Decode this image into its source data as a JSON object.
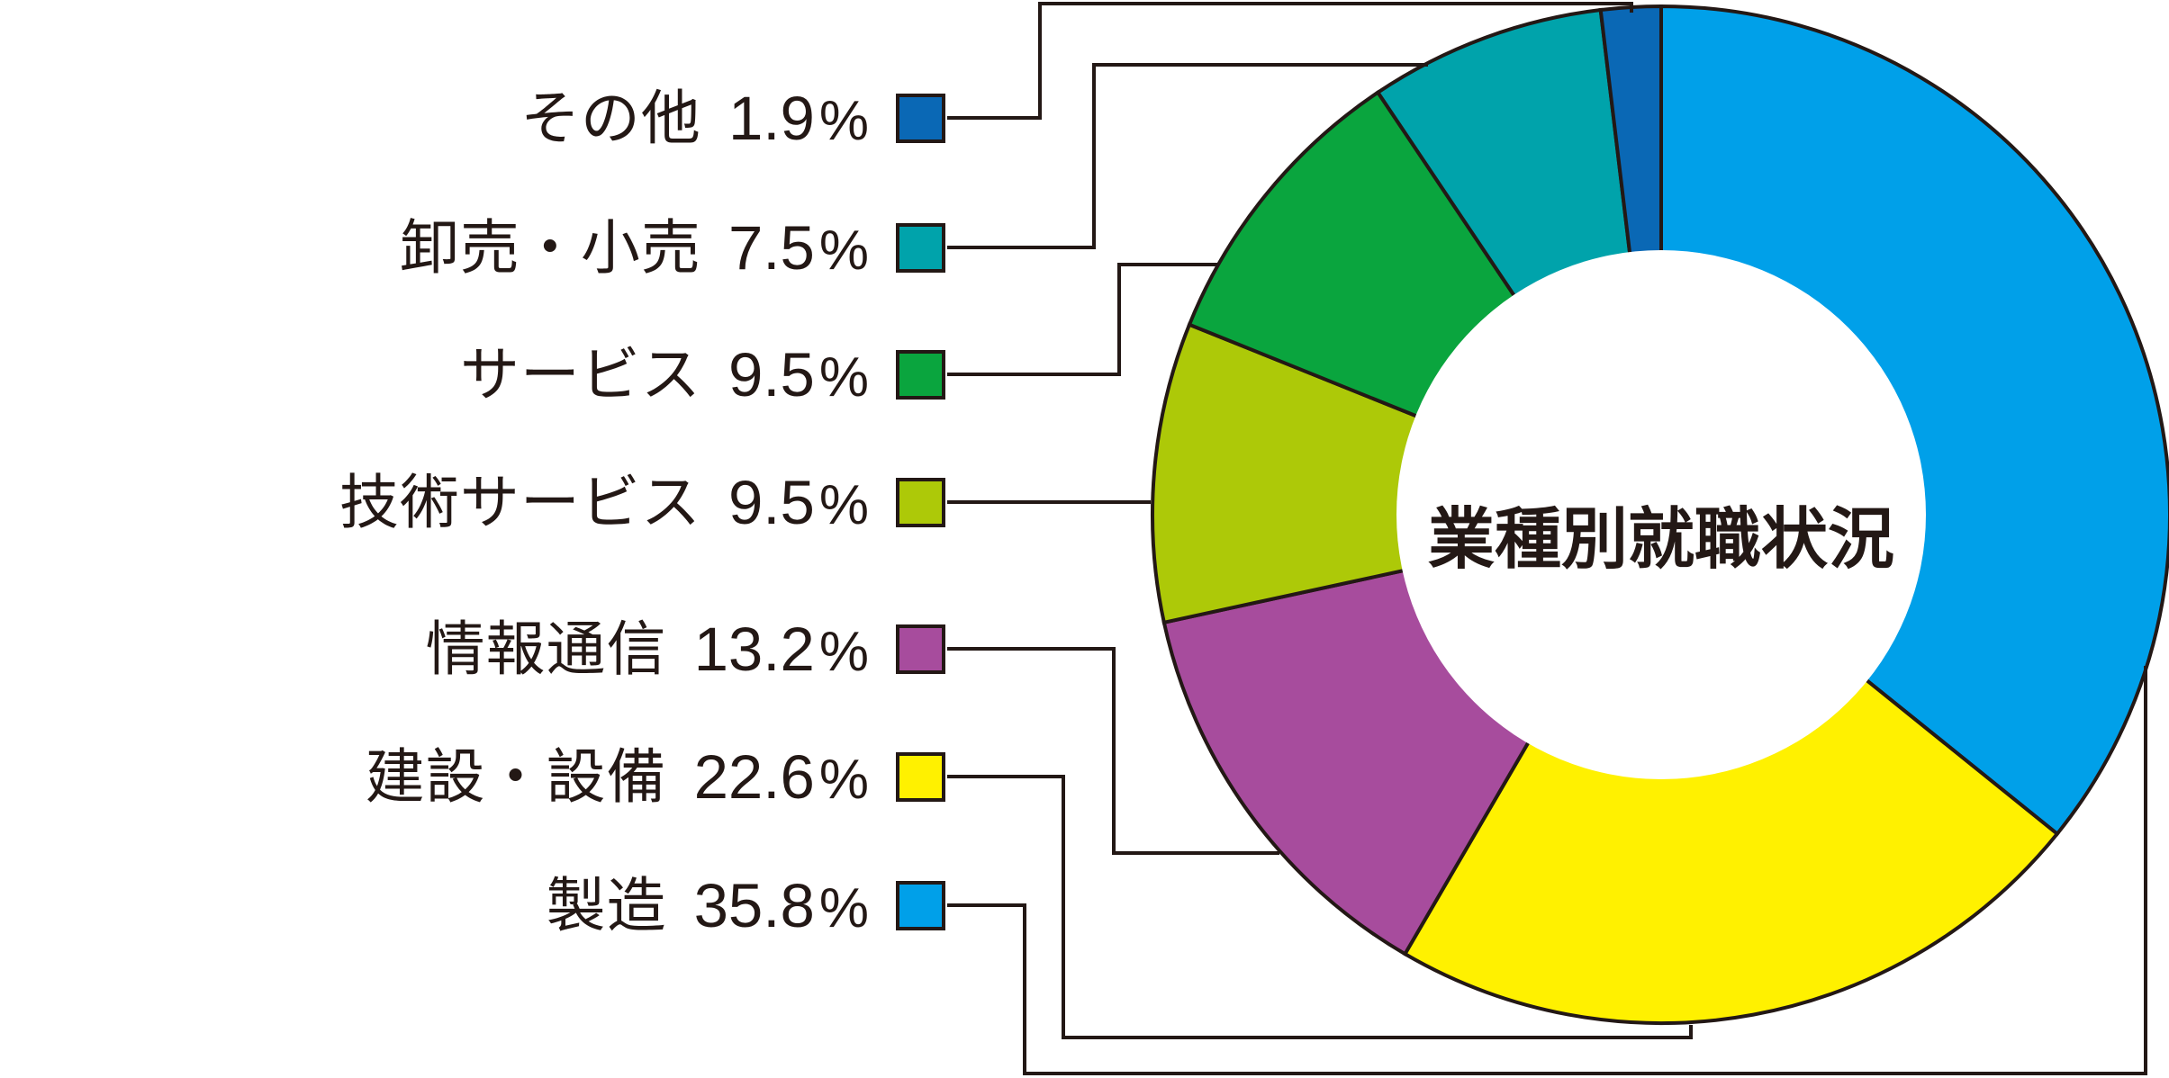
{
  "title": "業種別就職状況",
  "chart_data": {
    "type": "pie",
    "subtype": "donut",
    "title": "業種別就職状況",
    "center_label": "業種別就職状況",
    "unit": "%",
    "start_angle_deg": 0,
    "direction": "clockwise",
    "legend_position": "left",
    "categories": [
      "製造",
      "建設・設備",
      "情報通信",
      "技術サービス",
      "サービス",
      "卸売・小売",
      "その他"
    ],
    "values": [
      35.8,
      22.6,
      13.2,
      9.5,
      9.5,
      7.5,
      1.9
    ],
    "colors": [
      "#00A0E9",
      "#FFF100",
      "#A74C9D",
      "#ADC908",
      "#0AA53E",
      "#00A3AB",
      "#0A68B5"
    ]
  },
  "legend": {
    "items": [
      {
        "label": "その他",
        "value": "1.9",
        "unit": "%",
        "color": "#0A68B5"
      },
      {
        "label": "卸売・小売",
        "value": "7.5",
        "unit": "%",
        "color": "#00A3AB"
      },
      {
        "label": "サービス",
        "value": "9.5",
        "unit": "%",
        "color": "#0AA53E"
      },
      {
        "label": "技術サービス",
        "value": "9.5",
        "unit": "%",
        "color": "#ADC908"
      },
      {
        "label": "情報通信",
        "value": "13.2",
        "unit": "%",
        "color": "#A74C9D"
      },
      {
        "label": "建設・設備",
        "value": "22.6",
        "unit": "%",
        "color": "#FFF100"
      },
      {
        "label": "製造",
        "value": "35.8",
        "unit": "%",
        "color": "#00A0E9"
      }
    ]
  },
  "style": {
    "outline_color": "#231815",
    "text_color": "#231815",
    "background": "#FFFFFF"
  }
}
